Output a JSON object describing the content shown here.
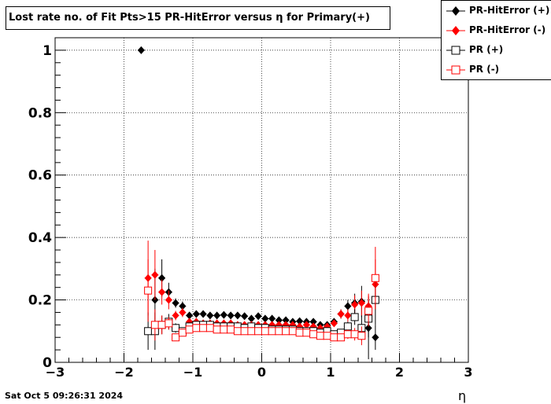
{
  "title": "Lost rate no. of Fit Pts>15 PR-HitError versus η for Primary(+)",
  "timestamp": "Sat Oct  5 09:26:31 2024",
  "chart_data": {
    "type": "scatter",
    "title": "Lost rate no. of Fit Pts>15 PR-HitError versus η for Primary(+)",
    "xlabel": "η",
    "ylabel": "",
    "xlim": [
      -3,
      3
    ],
    "ylim": [
      0,
      1.04
    ],
    "grid": true,
    "legend_position": "top-right",
    "x_ticks": [
      -3,
      -2,
      -1,
      0,
      1,
      2,
      3
    ],
    "x_tick_labels": [
      "−3",
      "−2",
      "−1",
      "0",
      "1",
      "2",
      "3"
    ],
    "y_ticks": [
      0,
      0.2,
      0.4,
      0.6,
      0.8,
      1
    ],
    "y_tick_labels": [
      "0",
      "0.2",
      "0.4",
      "0.6",
      "0.8",
      "1"
    ],
    "series": [
      {
        "name": "PR-HitError (+)",
        "color": "#000000",
        "marker": "filled-diamond",
        "x": [
          -1.75,
          -1.55,
          -1.45,
          -1.35,
          -1.25,
          -1.15,
          -1.05,
          -0.95,
          -0.85,
          -0.75,
          -0.65,
          -0.55,
          -0.45,
          -0.35,
          -0.25,
          -0.15,
          -0.05,
          0.05,
          0.15,
          0.25,
          0.35,
          0.45,
          0.55,
          0.65,
          0.75,
          0.85,
          0.95,
          1.05,
          1.15,
          1.25,
          1.35,
          1.45,
          1.55,
          1.65
        ],
        "y": [
          1.0,
          0.2,
          0.27,
          0.225,
          0.19,
          0.18,
          0.15,
          0.155,
          0.155,
          0.15,
          0.15,
          0.152,
          0.15,
          0.15,
          0.148,
          0.14,
          0.148,
          0.14,
          0.14,
          0.135,
          0.135,
          0.13,
          0.132,
          0.13,
          0.13,
          0.12,
          0.12,
          0.13,
          0.155,
          0.18,
          0.19,
          0.195,
          0.11,
          0.08
        ],
        "err": [
          0,
          0.1,
          0.06,
          0.03,
          0.015,
          0.015,
          0.01,
          0.008,
          0.008,
          0.008,
          0.008,
          0.008,
          0.008,
          0.008,
          0.008,
          0.008,
          0.008,
          0.008,
          0.008,
          0.008,
          0.008,
          0.008,
          0.008,
          0.008,
          0.008,
          0.008,
          0.008,
          0.01,
          0.015,
          0.02,
          0.03,
          0.05,
          0.1,
          0.04
        ]
      },
      {
        "name": "PR-HitError (-)",
        "color": "#ff0000",
        "marker": "filled-diamond",
        "x": [
          -1.65,
          -1.55,
          -1.45,
          -1.35,
          -1.25,
          -1.15,
          -1.05,
          -0.95,
          -0.85,
          -0.75,
          -0.65,
          -0.55,
          -0.45,
          -0.35,
          -0.25,
          -0.15,
          -0.05,
          0.05,
          0.15,
          0.25,
          0.35,
          0.45,
          0.55,
          0.65,
          0.75,
          0.85,
          0.95,
          1.05,
          1.15,
          1.25,
          1.35,
          1.45,
          1.55,
          1.65
        ],
        "y": [
          0.27,
          0.28,
          0.225,
          0.2,
          0.15,
          0.16,
          0.13,
          0.13,
          0.125,
          0.125,
          0.125,
          0.125,
          0.125,
          0.12,
          0.12,
          0.12,
          0.12,
          0.12,
          0.12,
          0.12,
          0.12,
          0.12,
          0.115,
          0.12,
          0.115,
          0.11,
          0.115,
          0.125,
          0.155,
          0.15,
          0.185,
          0.19,
          0.18,
          0.25
        ],
        "err": [
          0.12,
          0.08,
          0.04,
          0.03,
          0.015,
          0.015,
          0.01,
          0.008,
          0.008,
          0.008,
          0.008,
          0.008,
          0.008,
          0.008,
          0.008,
          0.008,
          0.008,
          0.008,
          0.008,
          0.008,
          0.008,
          0.008,
          0.008,
          0.008,
          0.008,
          0.008,
          0.008,
          0.01,
          0.015,
          0.02,
          0.03,
          0.04,
          0.04,
          0.08
        ]
      },
      {
        "name": "PR (+)",
        "color": "#000000",
        "marker": "open-square",
        "x": [
          -1.65,
          -1.55,
          -1.45,
          -1.35,
          -1.25,
          -1.15,
          -1.05,
          -0.95,
          -0.85,
          -0.75,
          -0.65,
          -0.55,
          -0.45,
          -0.35,
          -0.25,
          -0.15,
          -0.05,
          0.05,
          0.15,
          0.25,
          0.35,
          0.45,
          0.55,
          0.65,
          0.75,
          0.85,
          0.95,
          1.05,
          1.15,
          1.25,
          1.35,
          1.45,
          1.55,
          1.65
        ],
        "y": [
          0.1,
          0.1,
          0.12,
          0.13,
          0.11,
          0.1,
          0.115,
          0.12,
          0.12,
          0.12,
          0.115,
          0.115,
          0.115,
          0.115,
          0.11,
          0.115,
          0.11,
          0.11,
          0.105,
          0.105,
          0.105,
          0.105,
          0.1,
          0.1,
          0.1,
          0.095,
          0.1,
          0.09,
          0.095,
          0.115,
          0.145,
          0.11,
          0.14,
          0.2
        ],
        "err": [
          0.06,
          0.06,
          0.03,
          0.025,
          0.015,
          0.012,
          0.01,
          0.008,
          0.008,
          0.008,
          0.008,
          0.008,
          0.008,
          0.008,
          0.008,
          0.008,
          0.008,
          0.008,
          0.008,
          0.008,
          0.008,
          0.008,
          0.008,
          0.008,
          0.008,
          0.008,
          0.008,
          0.01,
          0.012,
          0.015,
          0.025,
          0.04,
          0.06,
          0.08
        ]
      },
      {
        "name": "PR (-)",
        "color": "#ff0000",
        "marker": "open-square",
        "x": [
          -1.65,
          -1.55,
          -1.45,
          -1.35,
          -1.25,
          -1.15,
          -1.05,
          -0.95,
          -0.85,
          -0.75,
          -0.65,
          -0.55,
          -0.45,
          -0.35,
          -0.25,
          -0.15,
          -0.05,
          0.05,
          0.15,
          0.25,
          0.35,
          0.45,
          0.55,
          0.65,
          0.75,
          0.85,
          0.95,
          1.05,
          1.15,
          1.25,
          1.35,
          1.45,
          1.55,
          1.65
        ],
        "y": [
          0.23,
          0.12,
          0.12,
          0.125,
          0.08,
          0.095,
          0.105,
          0.11,
          0.11,
          0.11,
          0.105,
          0.105,
          0.105,
          0.1,
          0.1,
          0.1,
          0.1,
          0.1,
          0.1,
          0.1,
          0.1,
          0.1,
          0.095,
          0.095,
          0.09,
          0.085,
          0.085,
          0.08,
          0.08,
          0.09,
          0.09,
          0.085,
          0.165,
          0.27
        ],
        "err": [
          0.1,
          0.05,
          0.03,
          0.02,
          0.012,
          0.012,
          0.01,
          0.008,
          0.008,
          0.008,
          0.008,
          0.008,
          0.008,
          0.008,
          0.008,
          0.008,
          0.008,
          0.008,
          0.008,
          0.008,
          0.008,
          0.008,
          0.008,
          0.008,
          0.008,
          0.008,
          0.008,
          0.01,
          0.012,
          0.015,
          0.02,
          0.03,
          0.05,
          0.1
        ]
      }
    ]
  },
  "legend": [
    {
      "label": "PR-HitError (+)",
      "color": "#000000",
      "marker": "filled-diamond"
    },
    {
      "label": "PR-HitError (-)",
      "color": "#ff0000",
      "marker": "filled-diamond"
    },
    {
      "label": "PR (+)",
      "color": "#000000",
      "marker": "open-square"
    },
    {
      "label": "PR (-)",
      "color": "#ff0000",
      "marker": "open-square"
    }
  ]
}
